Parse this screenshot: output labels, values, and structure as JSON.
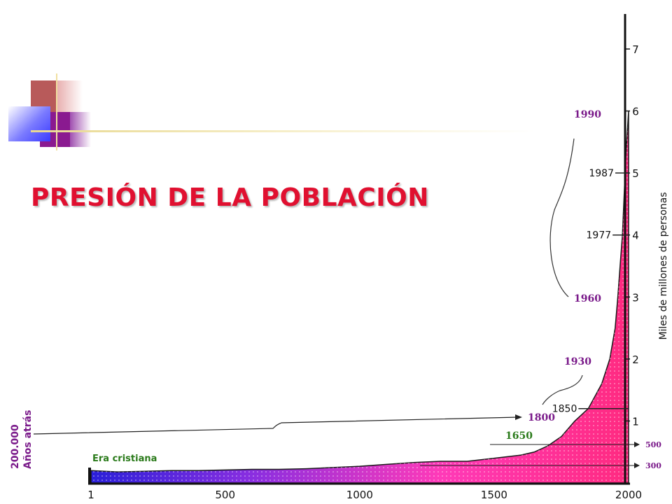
{
  "page": {
    "title": "PRESIÓN DE LA POBLACIÓN"
  },
  "colors": {
    "title": "#e01030",
    "annot_purple": "#7a1a8a",
    "annot_green": "#2a7a1a",
    "fill_blue": "#3a1fd8",
    "fill_pink": "#ff3aa0"
  },
  "chart_data": {
    "type": "area",
    "title": "",
    "ylabel": "Miles de millones de personas",
    "xlim": [
      1,
      2000
    ],
    "ylim": [
      0,
      7
    ],
    "x_ticks": [
      "1",
      "500",
      "1000",
      "1500",
      "2000"
    ],
    "y_ticks": [
      "1",
      "2",
      "3",
      "4",
      "5",
      "6",
      "7"
    ],
    "series": [
      {
        "x": [
          1,
          100,
          200,
          300,
          400,
          500,
          600,
          700,
          800,
          900,
          1000,
          1100,
          1200,
          1300,
          1400,
          1500,
          1600,
          1650,
          1700,
          1750,
          1800,
          1850,
          1900,
          1930,
          1950,
          1960,
          1970,
          1977,
          1987,
          1990,
          2000
        ],
        "y": [
          0.2,
          0.18,
          0.19,
          0.2,
          0.2,
          0.21,
          0.22,
          0.22,
          0.23,
          0.25,
          0.27,
          0.3,
          0.33,
          0.35,
          0.35,
          0.4,
          0.45,
          0.5,
          0.6,
          0.75,
          1.0,
          1.2,
          1.6,
          2.0,
          2.5,
          3.0,
          3.6,
          4.0,
          5.0,
          5.3,
          6.0
        ]
      }
    ],
    "markers": [
      {
        "label": "1850",
        "y": 1.2
      },
      {
        "label": "1977",
        "y": 4.0
      },
      {
        "label": "1987",
        "y": 5.0
      }
    ],
    "annotations": {
      "a1990": "1990",
      "a1960": "1960",
      "a1930": "1930",
      "a1800": "1800",
      "a1650": "1650",
      "era": "Era cristiana",
      "r500": "500",
      "r300": "300",
      "left_top": "200.000",
      "left_bottom": "Años atrás"
    }
  }
}
